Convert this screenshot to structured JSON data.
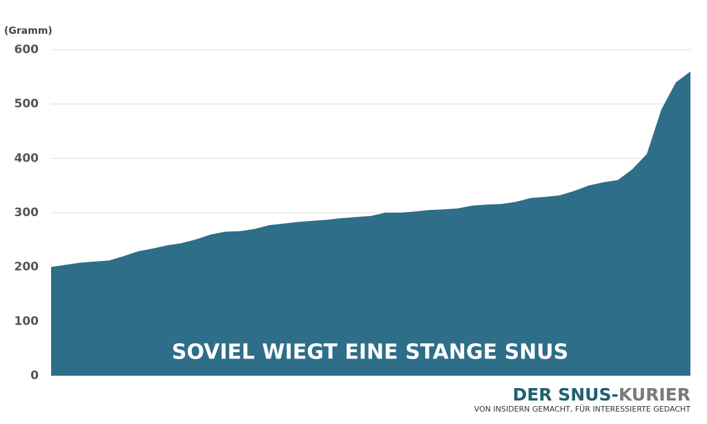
{
  "chart_data": {
    "type": "area",
    "title": "SOVIEL WIEGT EINE STANGE SNUS",
    "y_label": "(Gramm)",
    "values": [
      200,
      204,
      208,
      210,
      212,
      220,
      229,
      234,
      240,
      244,
      251,
      260,
      265,
      266,
      270,
      277,
      280,
      283,
      285,
      287,
      290,
      292,
      294,
      300,
      300,
      302,
      305,
      306,
      308,
      313,
      315,
      316,
      320,
      327,
      329,
      332,
      340,
      350,
      356,
      360,
      380,
      408,
      490,
      540,
      560
    ],
    "color": "#2e6e88",
    "ylim": [
      0,
      600
    ],
    "yticks": [
      0,
      100,
      200,
      300,
      400,
      500,
      600
    ],
    "grid": true
  },
  "brand": {
    "name_part1": "DER SNUS-",
    "name_part2": "KURIER",
    "tagline": "VON INSIDERN GEMACHT, FÜR INTERESSIERTE GEDACHT"
  }
}
